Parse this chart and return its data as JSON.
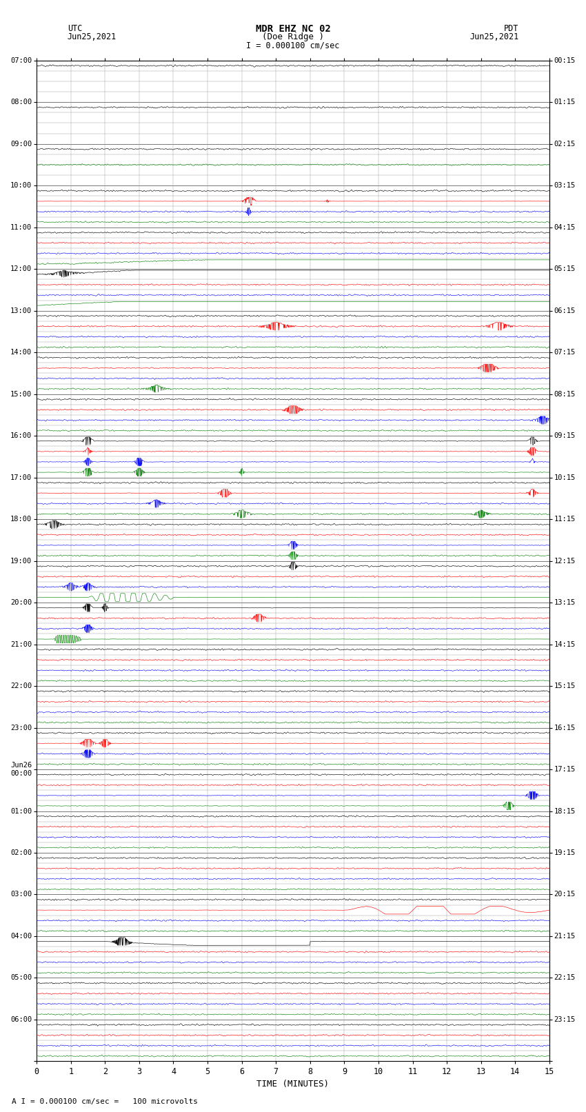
{
  "title_line1": "MDR EHZ NC 02",
  "title_line2": "(Doe Ridge )",
  "scale_label": "I = 0.000100 cm/sec",
  "footer_label": "A I = 0.000100 cm/sec =   100 microvolts",
  "left_label_line1": "UTC",
  "left_label_line2": "Jun25,2021",
  "right_label_line1": "PDT",
  "right_label_line2": "Jun25,2021",
  "xlabel": "TIME (MINUTES)",
  "bg_color": "#ffffff",
  "grid_color": "#999999",
  "xmin": 0,
  "xmax": 15,
  "xticks": [
    0,
    1,
    2,
    3,
    4,
    5,
    6,
    7,
    8,
    9,
    10,
    11,
    12,
    13,
    14,
    15
  ],
  "colors": [
    "black",
    "red",
    "blue",
    "green"
  ],
  "utc_hour_labels": [
    "07:00",
    "08:00",
    "09:00",
    "10:00",
    "11:00",
    "12:00",
    "13:00",
    "14:00",
    "15:00",
    "16:00",
    "17:00",
    "18:00",
    "19:00",
    "20:00",
    "21:00",
    "22:00",
    "23:00",
    "Jun26\n00:00",
    "01:00",
    "02:00",
    "03:00",
    "04:00",
    "05:00",
    "06:00"
  ],
  "pdt_hour_labels": [
    "00:15",
    "01:15",
    "02:15",
    "03:15",
    "04:15",
    "05:15",
    "06:15",
    "07:15",
    "08:15",
    "09:15",
    "10:15",
    "11:15",
    "12:15",
    "13:15",
    "14:15",
    "15:15",
    "16:15",
    "17:15",
    "18:15",
    "19:15",
    "20:15",
    "21:15",
    "22:15",
    "23:15"
  ],
  "n_hours": 24,
  "subrows_per_hour": 4,
  "noise_amp_black": 0.06,
  "noise_amp_color": 0.055,
  "linewidth": 0.45
}
